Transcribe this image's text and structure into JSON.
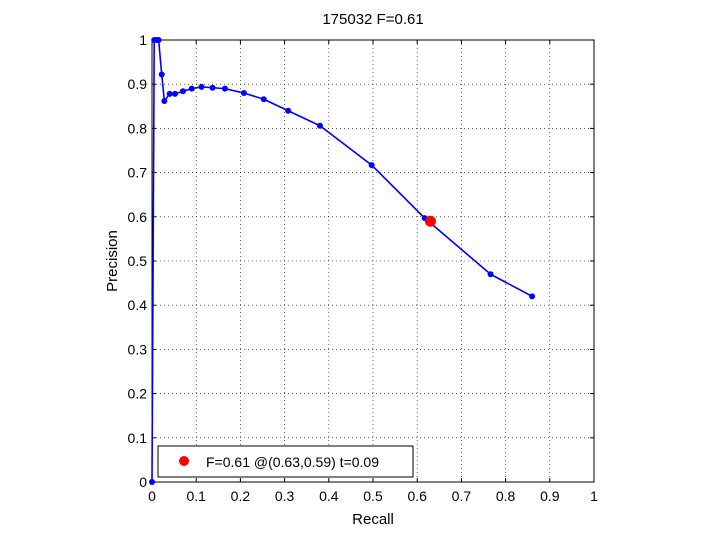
{
  "chart_data": {
    "type": "line",
    "title": "175032 F=0.61",
    "xlabel": "Recall",
    "ylabel": "Precision",
    "xlim": [
      0,
      1
    ],
    "ylim": [
      0,
      1
    ],
    "xticks": [
      0,
      0.1,
      0.2,
      0.3,
      0.4,
      0.5,
      0.6,
      0.7,
      0.8,
      0.9,
      1
    ],
    "yticks": [
      0,
      0.1,
      0.2,
      0.3,
      0.4,
      0.5,
      0.6,
      0.7,
      0.8,
      0.9,
      1
    ],
    "xtick_labels": [
      "0",
      "0.1",
      "0.2",
      "0.3",
      "0.4",
      "0.5",
      "0.6",
      "0.7",
      "0.8",
      "0.9",
      "1"
    ],
    "ytick_labels": [
      "0",
      "0.1",
      "0.2",
      "0.3",
      "0.4",
      "0.5",
      "0.6",
      "0.7",
      "0.8",
      "0.9",
      "1"
    ],
    "grid": "dotted",
    "legend_position": "bottom-left",
    "series": [
      {
        "color": "#0000ff",
        "marker": "dot",
        "points": [
          [
            0.0,
            0.0
          ],
          [
            0.005,
            1.0
          ],
          [
            0.01,
            1.0
          ],
          [
            0.015,
            1.0
          ],
          [
            0.022,
            0.922
          ],
          [
            0.028,
            0.862
          ],
          [
            0.04,
            0.878
          ],
          [
            0.052,
            0.878
          ],
          [
            0.07,
            0.884
          ],
          [
            0.09,
            0.89
          ],
          [
            0.112,
            0.894
          ],
          [
            0.137,
            0.892
          ],
          [
            0.165,
            0.89
          ],
          [
            0.208,
            0.88
          ],
          [
            0.253,
            0.866
          ],
          [
            0.308,
            0.84
          ],
          [
            0.38,
            0.806
          ],
          [
            0.497,
            0.717
          ],
          [
            0.617,
            0.597
          ],
          [
            0.766,
            0.47
          ],
          [
            0.86,
            0.42
          ]
        ]
      }
    ],
    "highlight": {
      "x": 0.63,
      "y": 0.59,
      "color": "#ff0000",
      "label": "F=0.61 @(0.63,0.59) t=0.09"
    }
  }
}
